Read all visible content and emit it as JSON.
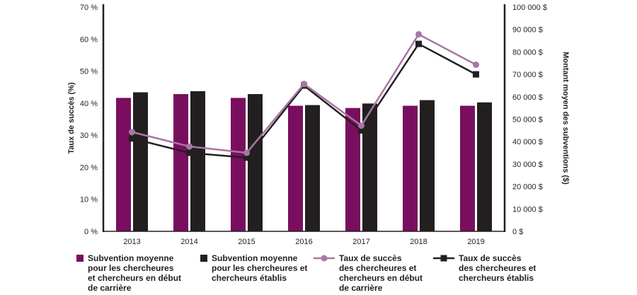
{
  "chart_data": {
    "type": "bar",
    "categories": [
      "2013",
      "2014",
      "2015",
      "2016",
      "2017",
      "2018",
      "2019"
    ],
    "left_axis": {
      "label": "Taux de succès (%)",
      "min": 0,
      "max": 70,
      "step": 10,
      "tick_labels": [
        "0 %",
        "10 %",
        "20 %",
        "30 %",
        "40 %",
        "50 %",
        "60 %",
        "70 %"
      ]
    },
    "right_axis": {
      "label": "Montant moyen des subventions ($)",
      "min": 0,
      "max": 100000,
      "step": 10000,
      "tick_labels": [
        "0 $",
        "10 000 $",
        "20 000 $",
        "30 000 $",
        "40 000 $",
        "50 000 $",
        "60 000 $",
        "70 000 $",
        "80 000 $",
        "90 000 $",
        "100 000 $"
      ]
    },
    "series": [
      {
        "name": "Subvention moyenne pour les chercheures et chercheurs en début de carrière",
        "legend_label": "Subvention moyenne\npour les chercheures\net chercheurs en début\nde carrière",
        "kind": "bar",
        "axis": "right",
        "color": "#7a0e5e",
        "values": [
          59500,
          61200,
          59500,
          56000,
          55000,
          56000,
          56000
        ]
      },
      {
        "name": "Subvention moyenne pour les chercheures et chercheurs établis",
        "legend_label": "Subvention moyenne\npour les chercheures et\nchercheurs établis",
        "kind": "bar",
        "axis": "right",
        "color": "#231f20",
        "values": [
          62000,
          62500,
          61200,
          56300,
          57000,
          58500,
          57500
        ]
      },
      {
        "name": "Taux de succès des chercheures et chercheurs en début de carrière",
        "legend_label": "Taux de succès\ndes chercheures et\nchercheurs en début\nde carrière",
        "kind": "line",
        "axis": "left",
        "color": "#a777a3",
        "marker": "circle",
        "values": [
          31,
          26.5,
          24.5,
          46,
          33,
          61.5,
          52
        ]
      },
      {
        "name": "Taux de succès des chercheures et chercheurs établis",
        "legend_label": "Taux de succès\ndes chercheures et\nchercheurs établis",
        "kind": "line",
        "axis": "left",
        "color": "#231f20",
        "marker": "square",
        "values": [
          29,
          24.5,
          23,
          45.5,
          31.5,
          58.5,
          49
        ]
      }
    ]
  }
}
